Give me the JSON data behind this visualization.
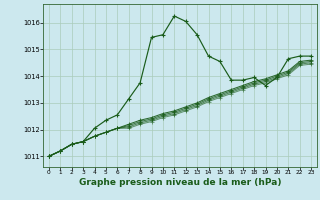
{
  "background_color": "#cce8ee",
  "grid_color": "#aaccbb",
  "line_color": "#1a5c1a",
  "xlabel": "Graphe pression niveau de la mer (hPa)",
  "xlabel_fontsize": 6.5,
  "ylim": [
    1010.6,
    1016.7
  ],
  "xlim": [
    -0.5,
    23.5
  ],
  "yticks": [
    1011,
    1012,
    1013,
    1014,
    1015,
    1016
  ],
  "xticks": [
    0,
    1,
    2,
    3,
    4,
    5,
    6,
    7,
    8,
    9,
    10,
    11,
    12,
    13,
    14,
    15,
    16,
    17,
    18,
    19,
    20,
    21,
    22,
    23
  ],
  "lines": [
    [
      1011.0,
      1011.2,
      1011.45,
      1011.55,
      1012.05,
      1012.35,
      1012.55,
      1013.15,
      1013.75,
      1015.45,
      1015.55,
      1016.25,
      1016.05,
      1015.55,
      1014.75,
      1014.55,
      1013.85,
      1013.85,
      1013.95,
      1013.65,
      1013.95,
      1014.65,
      1014.75,
      1014.75
    ],
    [
      1011.0,
      1011.2,
      1011.45,
      1011.55,
      1011.75,
      1011.9,
      1012.05,
      1012.2,
      1012.35,
      1012.45,
      1012.6,
      1012.7,
      1012.85,
      1013.0,
      1013.2,
      1013.35,
      1013.5,
      1013.65,
      1013.8,
      1013.9,
      1014.05,
      1014.2,
      1014.55,
      1014.6
    ],
    [
      1011.0,
      1011.2,
      1011.45,
      1011.55,
      1011.75,
      1011.9,
      1012.05,
      1012.15,
      1012.3,
      1012.4,
      1012.55,
      1012.65,
      1012.8,
      1012.95,
      1013.15,
      1013.3,
      1013.45,
      1013.6,
      1013.75,
      1013.85,
      1014.0,
      1014.15,
      1014.5,
      1014.55
    ],
    [
      1011.0,
      1011.2,
      1011.45,
      1011.55,
      1011.75,
      1011.9,
      1012.05,
      1012.1,
      1012.25,
      1012.35,
      1012.5,
      1012.6,
      1012.75,
      1012.9,
      1013.1,
      1013.25,
      1013.4,
      1013.55,
      1013.7,
      1013.8,
      1013.95,
      1014.1,
      1014.45,
      1014.5
    ],
    [
      1011.0,
      1011.2,
      1011.45,
      1011.55,
      1011.75,
      1011.9,
      1012.05,
      1012.05,
      1012.2,
      1012.3,
      1012.45,
      1012.55,
      1012.7,
      1012.85,
      1013.05,
      1013.2,
      1013.35,
      1013.5,
      1013.65,
      1013.75,
      1013.9,
      1014.05,
      1014.4,
      1014.45
    ]
  ]
}
